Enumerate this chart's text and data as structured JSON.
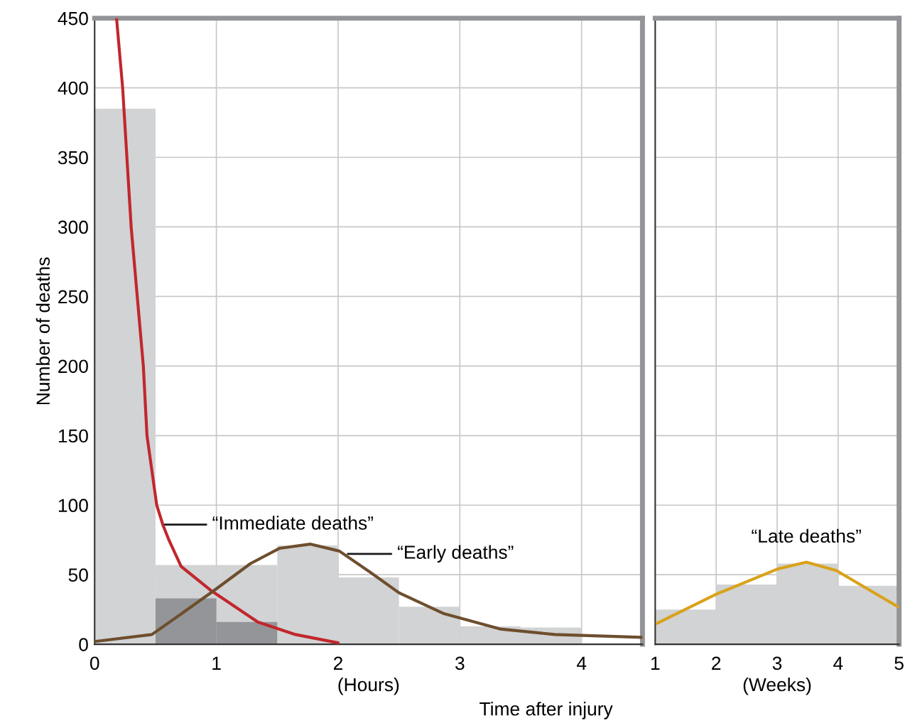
{
  "chart_data": [
    {
      "type": "histogram",
      "ylabel": "Number of deaths",
      "xlabel": "(Hours)",
      "bins": [
        0,
        0.5,
        1,
        1.5,
        2,
        2.5,
        3,
        3.5,
        4,
        4.5
      ],
      "xlim": [
        0,
        4.5
      ],
      "xticks": [
        0,
        1,
        2,
        3,
        4
      ],
      "ylim": [
        0,
        450
      ],
      "yticks": [
        0,
        50,
        100,
        150,
        200,
        250,
        300,
        350,
        400,
        450
      ],
      "grid": true,
      "series": [
        {
          "color": "#d1d3d4",
          "values": [
            385,
            57,
            57,
            71,
            48,
            27,
            13,
            12,
            0
          ]
        },
        {
          "color": "#939598",
          "values": [
            null,
            33,
            16,
            null,
            null,
            null,
            null,
            null,
            null
          ]
        },
        {
          "type": "line",
          "color": "#c1272d",
          "x": [
            0.18,
            0.23,
            0.3,
            0.35,
            0.4,
            0.43,
            0.51,
            0.56,
            0.61,
            0.71,
            0.95,
            1.34,
            1.65,
            2.0
          ],
          "values": [
            450,
            400,
            300,
            250,
            200,
            150,
            100,
            86,
            75,
            56,
            39,
            16,
            7,
            1
          ]
        },
        {
          "type": "line",
          "color": "#6e4e2e",
          "x": [
            0,
            0.47,
            0.73,
            0.97,
            1.28,
            1.52,
            1.77,
            2.01,
            2.26,
            2.5,
            2.87,
            3.33,
            3.78,
            4.5
          ],
          "values": [
            2,
            7,
            23,
            38,
            58,
            69,
            72,
            67,
            52,
            37,
            22,
            11,
            7,
            5
          ]
        }
      ],
      "annotations": [
        {
          "text": "“Immediate deaths”",
          "x": 0.56,
          "y": 86
        },
        {
          "text": "“Early deaths”",
          "x": 2.08,
          "y": 65
        },
        "Time after injury"
      ]
    },
    {
      "type": "histogram",
      "xlabel": "(Weeks)",
      "bins": [
        1,
        2,
        3,
        4,
        5
      ],
      "xlim": [
        1,
        5
      ],
      "xticks": [
        1,
        2,
        3,
        4,
        5
      ],
      "ylim": [
        0,
        450
      ],
      "yticks": [
        0,
        50,
        100,
        150,
        200,
        250,
        300,
        350,
        400,
        450
      ],
      "grid": true,
      "tick_labels": "x",
      "series": [
        {
          "color": "#d1d3d4",
          "values": [
            25,
            43,
            58,
            42
          ]
        },
        {
          "type": "line",
          "color": "#d9a21b",
          "x": [
            1.03,
            2.0,
            3.0,
            3.48,
            3.97,
            4.98
          ],
          "values": [
            15,
            36,
            54,
            59,
            53,
            27
          ]
        }
      ],
      "annotations": [
        {
          "text": "“Late deaths”",
          "x": 3.48,
          "y": 59
        }
      ]
    }
  ]
}
